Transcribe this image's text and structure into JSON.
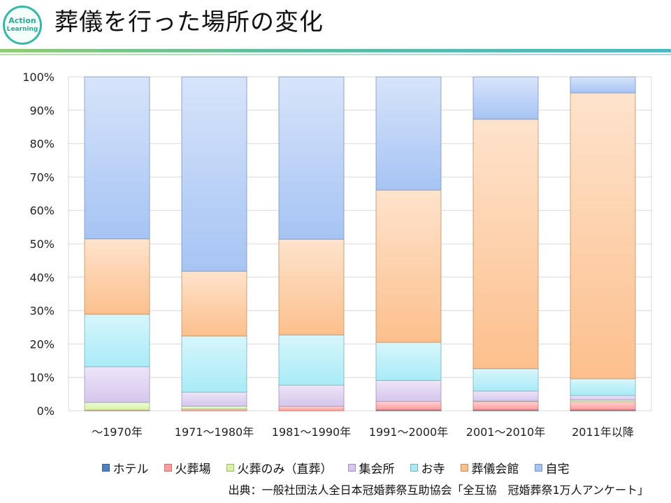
{
  "slide": {
    "title": "葬儀を行った場所の変化",
    "logo_line1": "Action",
    "logo_line2": "Learning",
    "source": "出典：一般社団法人全日本冠婚葬祭互助協会「全互協　冠婚葬祭1万人アンケート」"
  },
  "chart_data": {
    "type": "bar",
    "stacked": true,
    "percent": true,
    "title": "葬儀を行った場所の変化",
    "xlabel": "",
    "ylabel": "",
    "ylim": [
      0,
      100
    ],
    "yticks": [
      "0%",
      "10%",
      "20%",
      "30%",
      "40%",
      "50%",
      "60%",
      "70%",
      "80%",
      "90%",
      "100%"
    ],
    "grid": true,
    "legend_position": "bottom",
    "categories": [
      "～1970年",
      "1971～1980年",
      "1981～1990年",
      "1991～2000年",
      "2001～2010年",
      "2011年以降"
    ],
    "series": [
      {
        "name": "ホテル",
        "color": "#4f81bd",
        "values": [
          0,
          0,
          0,
          0.3,
          0.3,
          0.3
        ]
      },
      {
        "name": "火葬場",
        "color": "#ff9c9c",
        "values": [
          0.2,
          0.5,
          1.4,
          2.5,
          2.5,
          2.4
        ]
      },
      {
        "name": "火葬のみ（直葬）",
        "color": "#d7f3a4",
        "values": [
          2.3,
          0.9,
          0,
          0,
          0.1,
          0.5
        ]
      },
      {
        "name": "集会所",
        "color": "#d6c6ee",
        "values": [
          10.7,
          4.2,
          6.3,
          6.3,
          3.0,
          1.4
        ]
      },
      {
        "name": "お寺",
        "color": "#a8ebf7",
        "values": [
          15.7,
          16.8,
          15.0,
          11.4,
          6.7,
          5.0
        ]
      },
      {
        "name": "葬儀会館",
        "color": "#fcc08d",
        "values": [
          22.6,
          19.4,
          28.7,
          45.6,
          74.7,
          85.6
        ]
      },
      {
        "name": "自宅",
        "color": "#a6c4f4",
        "values": [
          48.5,
          58.2,
          48.6,
          33.9,
          12.7,
          4.8
        ]
      }
    ]
  }
}
